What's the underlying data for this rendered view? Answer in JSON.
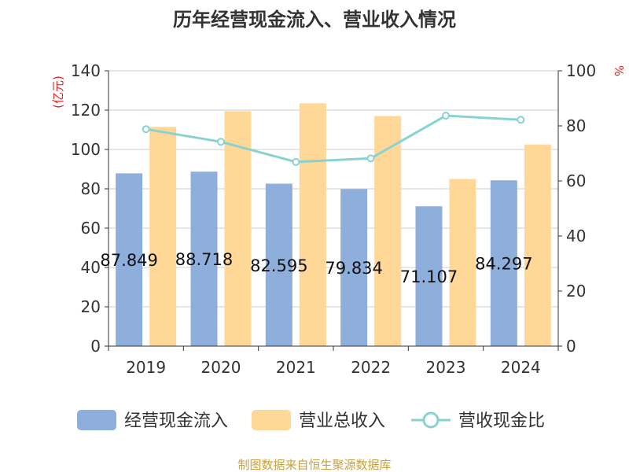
{
  "chart_data": {
    "type": "bar",
    "title": "历年经营现金流入、营业收入情况",
    "categories": [
      "2019",
      "2020",
      "2021",
      "2022",
      "2023",
      "2024"
    ],
    "series": [
      {
        "name": "经营现金流入",
        "type": "bar",
        "axis": "left",
        "color": "#8eaedb",
        "values": [
          87.849,
          88.718,
          82.595,
          79.834,
          71.107,
          84.297
        ],
        "data_labels": [
          "87.849",
          "88.718",
          "82.595",
          "79.834",
          "71.107",
          "84.297"
        ]
      },
      {
        "name": "营业总收入",
        "type": "bar",
        "axis": "left",
        "color": "#ffd898",
        "values": [
          111.5,
          119.5,
          123.5,
          117.0,
          85.0,
          102.5
        ]
      },
      {
        "name": "营收现金比",
        "type": "line",
        "axis": "right",
        "color": "#88d3d2",
        "values": [
          78.8,
          74.2,
          66.9,
          68.2,
          83.7,
          82.2
        ]
      }
    ],
    "y_left": {
      "label": "(亿元)",
      "range": [
        0,
        140
      ],
      "ticks": [
        "0",
        "20",
        "40",
        "60",
        "80",
        "100",
        "120",
        "140"
      ]
    },
    "y_right": {
      "label": "%",
      "range": [
        0,
        100
      ],
      "ticks": [
        "0",
        "20",
        "40",
        "60",
        "80",
        "100"
      ]
    },
    "grid": true,
    "legend_position": "bottom",
    "source": "制图数据来自恒生聚源数据库"
  }
}
